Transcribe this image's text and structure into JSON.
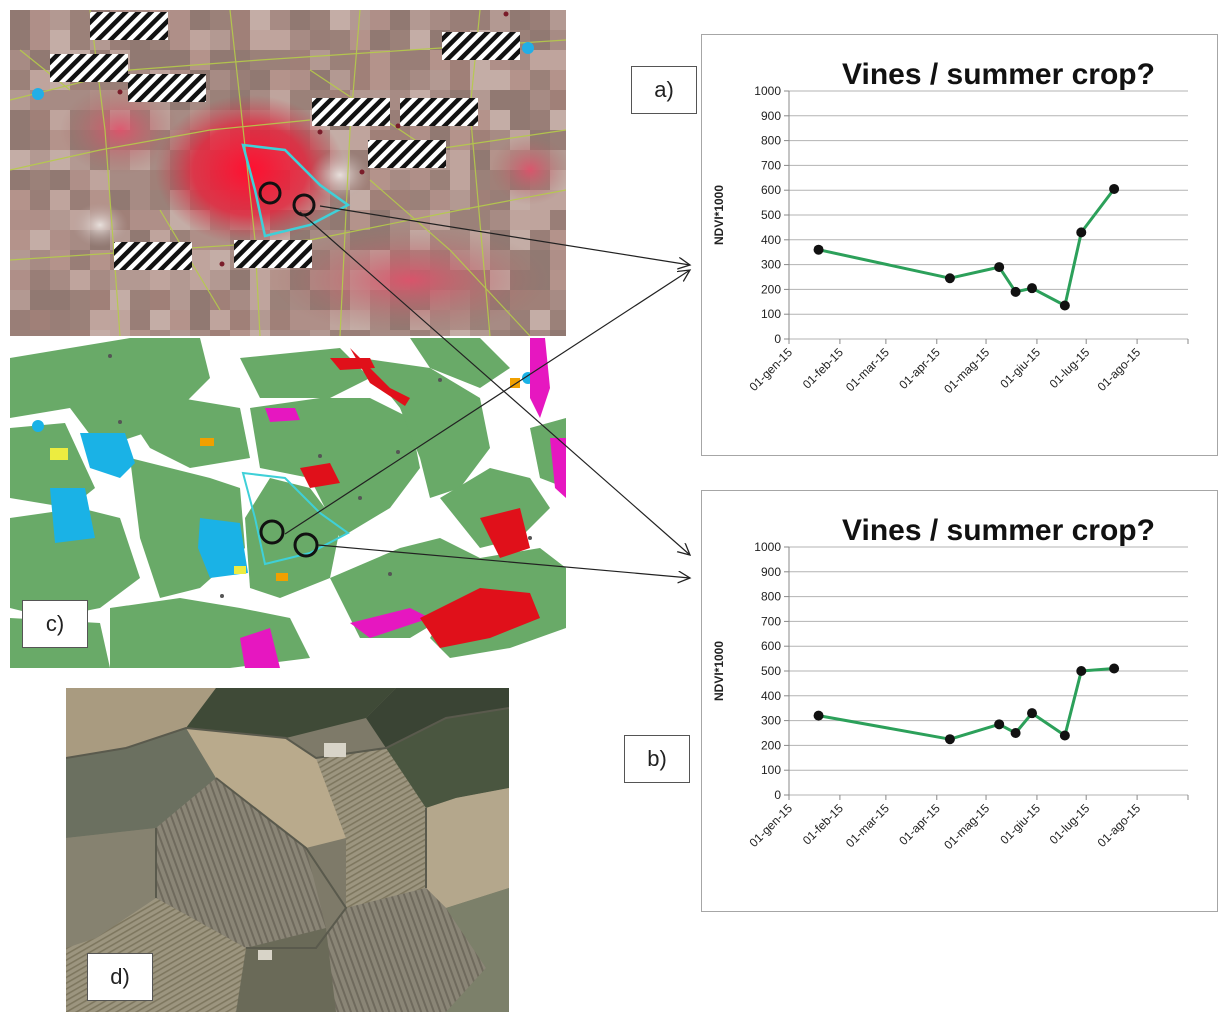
{
  "panels": {
    "a_label": "a)",
    "b_label": "b)",
    "c_label": "c)",
    "d_label": "d)"
  },
  "colors": {
    "series_line": "#2ca05a",
    "marker": "#111111",
    "grid": "#b3b3b3",
    "false_color_red": "#e8102a",
    "land_green": "#69aa68",
    "water_cyan": "#1ab2e6",
    "magenta": "#e617c0",
    "outline_cyan": "#28c8d8"
  },
  "chart_data": [
    {
      "type": "line",
      "panel": "a)",
      "title": "Vines / summer crop?",
      "xlabel": "",
      "ylabel": "NDVI*1000",
      "ylim": [
        0,
        1000
      ],
      "yticks": [
        0,
        100,
        200,
        300,
        400,
        500,
        600,
        700,
        800,
        900,
        1000
      ],
      "xticks": [
        "01-gen-15",
        "01-feb-15",
        "01-mar-15",
        "01-apr-15",
        "01-mag-15",
        "01-giu-15",
        "01-lug-15",
        "01-ago-15"
      ],
      "xlim": [
        "2015-01-01",
        "2015-09-01"
      ],
      "grid": true,
      "x": [
        "2015-01-19",
        "2015-04-09",
        "2015-05-09",
        "2015-05-19",
        "2015-05-29",
        "2015-06-18",
        "2015-06-28",
        "2015-07-18"
      ],
      "values": [
        360,
        245,
        290,
        190,
        205,
        135,
        430,
        605
      ]
    },
    {
      "type": "line",
      "panel": "b)",
      "title": "Vines / summer crop?",
      "xlabel": "",
      "ylabel": "NDVI*1000",
      "ylim": [
        0,
        1000
      ],
      "yticks": [
        0,
        100,
        200,
        300,
        400,
        500,
        600,
        700,
        800,
        900,
        1000
      ],
      "xticks": [
        "01-gen-15",
        "01-feb-15",
        "01-mar-15",
        "01-apr-15",
        "01-mag-15",
        "01-giu-15",
        "01-lug-15",
        "01-ago-15"
      ],
      "xlim": [
        "2015-01-01",
        "2015-09-01"
      ],
      "grid": true,
      "x": [
        "2015-01-19",
        "2015-04-09",
        "2015-05-09",
        "2015-05-19",
        "2015-05-29",
        "2015-06-18",
        "2015-06-28",
        "2015-07-18"
      ],
      "values": [
        320,
        225,
        285,
        250,
        330,
        240,
        500,
        510
      ]
    }
  ]
}
